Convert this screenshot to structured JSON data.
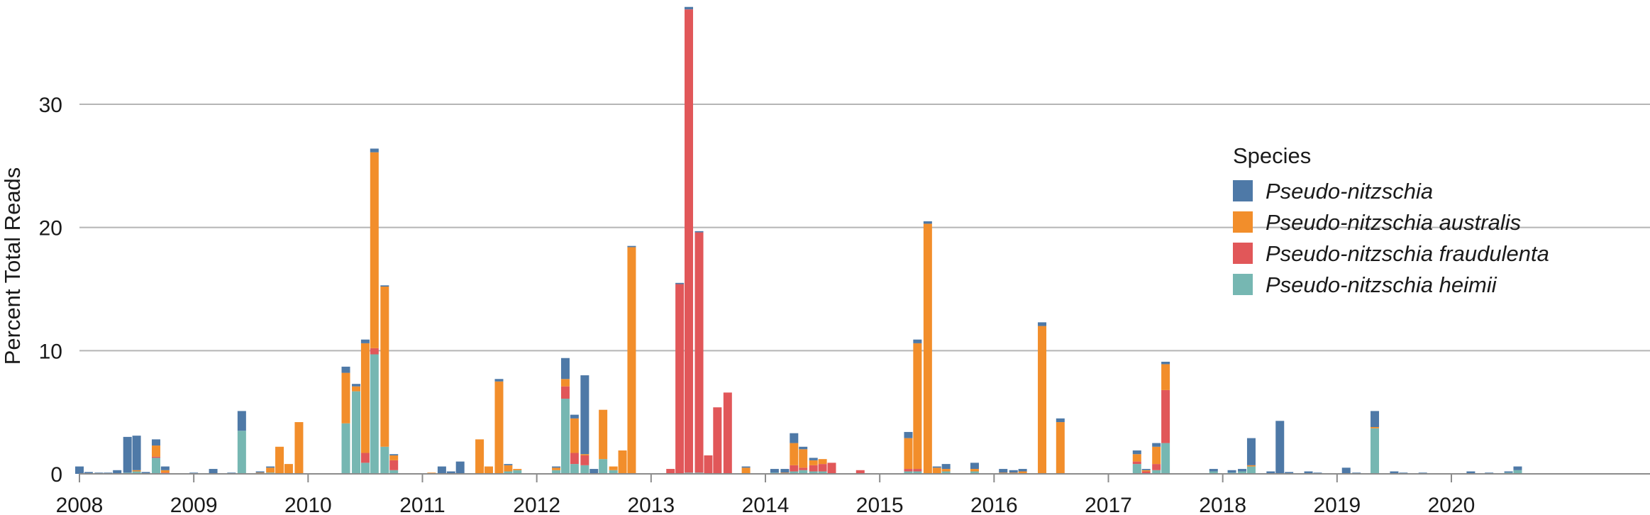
{
  "chart_data": {
    "type": "bar",
    "stacked": true,
    "ylabel": "Percent Total Reads",
    "xlabel": "",
    "ylim": [
      0,
      38
    ],
    "yticks": [
      0,
      10,
      20,
      30
    ],
    "xlim": [
      2008,
      2020.85
    ],
    "xticks": [
      2008,
      2009,
      2010,
      2011,
      2012,
      2013,
      2014,
      2015,
      2016,
      2017,
      2018,
      2019,
      2020
    ],
    "grid": "horizontal",
    "legend": {
      "title": "Species",
      "placement": "right"
    },
    "series_order": [
      "heimii",
      "fraudulenta",
      "australis",
      "pn"
    ],
    "series": [
      {
        "key": "pn",
        "name": "Pseudo-nitzschia",
        "color": "#4e79a7"
      },
      {
        "key": "australis",
        "name": "Pseudo-nitzschia australis",
        "color": "#f28e2b"
      },
      {
        "key": "fraudulenta",
        "name": "Pseudo-nitzschia fraudulenta",
        "color": "#e15759"
      },
      {
        "key": "heimii",
        "name": "Pseudo-nitzschia heimii",
        "color": "#76b7b2"
      }
    ],
    "bars": [
      {
        "x": 2008.0,
        "pn": 0.6
      },
      {
        "x": 2008.08,
        "pn": 0.15
      },
      {
        "x": 2008.17,
        "pn": 0.1
      },
      {
        "x": 2008.25,
        "pn": 0.1
      },
      {
        "x": 2008.33,
        "pn": 0.3
      },
      {
        "x": 2008.42,
        "pn": 2.9,
        "heimii": 0.1
      },
      {
        "x": 2008.5,
        "pn": 2.8,
        "australis": 0.1,
        "heimii": 0.2
      },
      {
        "x": 2008.58,
        "pn": 0.15
      },
      {
        "x": 2008.67,
        "pn": 0.5,
        "australis": 0.9,
        "fraudulenta": 0.1,
        "heimii": 1.3
      },
      {
        "x": 2008.75,
        "pn": 0.3,
        "australis": 0.2,
        "fraudulenta": 0.1
      },
      {
        "x": 2009.0,
        "pn": 0.1
      },
      {
        "x": 2009.17,
        "pn": 0.4
      },
      {
        "x": 2009.33,
        "pn": 0.1
      },
      {
        "x": 2009.42,
        "pn": 1.6,
        "heimii": 3.5
      },
      {
        "x": 2009.58,
        "pn": 0.1,
        "australis": 0.1
      },
      {
        "x": 2009.67,
        "pn": 0.1,
        "australis": 0.4,
        "heimii": 0.1
      },
      {
        "x": 2009.75,
        "australis": 2.2
      },
      {
        "x": 2009.83,
        "australis": 0.8
      },
      {
        "x": 2009.92,
        "australis": 4.2
      },
      {
        "x": 2010.0,
        "pn": 0.05
      },
      {
        "x": 2010.08,
        "pn": 0.05
      },
      {
        "x": 2010.33,
        "pn": 0.5,
        "australis": 4.1,
        "heimii": 4.1
      },
      {
        "x": 2010.42,
        "pn": 0.2,
        "australis": 0.4,
        "heimii": 6.7
      },
      {
        "x": 2010.5,
        "pn": 0.3,
        "australis": 8.9,
        "fraudulenta": 0.8,
        "heimii": 0.9
      },
      {
        "x": 2010.58,
        "pn": 0.3,
        "australis": 15.9,
        "fraudulenta": 0.5,
        "heimii": 9.7
      },
      {
        "x": 2010.67,
        "pn": 0.1,
        "australis": 13.0,
        "heimii": 2.2
      },
      {
        "x": 2010.75,
        "pn": 0.1,
        "australis": 0.4,
        "fraudulenta": 0.8,
        "heimii": 0.3
      },
      {
        "x": 2011.08,
        "australis": 0.1
      },
      {
        "x": 2011.17,
        "pn": 0.6
      },
      {
        "x": 2011.25,
        "pn": 0.2
      },
      {
        "x": 2011.33,
        "pn": 1.0
      },
      {
        "x": 2011.5,
        "australis": 2.8
      },
      {
        "x": 2011.58,
        "australis": 0.6
      },
      {
        "x": 2011.67,
        "pn": 0.2,
        "australis": 7.5
      },
      {
        "x": 2011.75,
        "pn": 0.1,
        "australis": 0.5,
        "heimii": 0.2
      },
      {
        "x": 2011.83,
        "australis": 0.1,
        "heimii": 0.3
      },
      {
        "x": 2012.17,
        "pn": 0.1,
        "australis": 0.2,
        "heimii": 0.3
      },
      {
        "x": 2012.25,
        "pn": 1.7,
        "australis": 0.6,
        "fraudulenta": 1.0,
        "heimii": 6.1
      },
      {
        "x": 2012.33,
        "pn": 0.3,
        "australis": 2.8,
        "fraudulenta": 0.9,
        "heimii": 0.8
      },
      {
        "x": 2012.42,
        "pn": 6.4,
        "australis": 0.1,
        "fraudulenta": 0.8,
        "heimii": 0.7
      },
      {
        "x": 2012.5,
        "pn": 0.4
      },
      {
        "x": 2012.58,
        "australis": 4.0,
        "heimii": 1.2
      },
      {
        "x": 2012.67,
        "australis": 0.3,
        "heimii": 0.3
      },
      {
        "x": 2012.75,
        "australis": 1.9
      },
      {
        "x": 2012.83,
        "pn": 0.1,
        "australis": 18.4
      },
      {
        "x": 2013.17,
        "fraudulenta": 0.4
      },
      {
        "x": 2013.25,
        "pn": 0.1,
        "fraudulenta": 15.4
      },
      {
        "x": 2013.33,
        "pn": 0.2,
        "fraudulenta": 37.6,
        "heimii": 0.1
      },
      {
        "x": 2013.42,
        "pn": 0.1,
        "fraudulenta": 19.5,
        "heimii": 0.1
      },
      {
        "x": 2013.5,
        "fraudulenta": 1.5
      },
      {
        "x": 2013.58,
        "fraudulenta": 5.4
      },
      {
        "x": 2013.67,
        "fraudulenta": 6.6
      },
      {
        "x": 2013.83,
        "pn": 0.1,
        "australis": 0.5
      },
      {
        "x": 2014.08,
        "pn": 0.3,
        "heimii": 0.1
      },
      {
        "x": 2014.17,
        "pn": 0.3,
        "australis": 0.1
      },
      {
        "x": 2014.25,
        "pn": 0.8,
        "australis": 1.8,
        "fraudulenta": 0.5,
        "heimii": 0.2
      },
      {
        "x": 2014.33,
        "pn": 0.2,
        "australis": 1.5,
        "fraudulenta": 0.2,
        "heimii": 0.3
      },
      {
        "x": 2014.42,
        "pn": 0.2,
        "australis": 0.4,
        "fraudulenta": 0.5,
        "heimii": 0.2
      },
      {
        "x": 2014.5,
        "australis": 0.4,
        "fraudulenta": 0.6,
        "heimii": 0.2
      },
      {
        "x": 2014.58,
        "fraudulenta": 0.9
      },
      {
        "x": 2014.67,
        "pn": 0.05
      },
      {
        "x": 2014.83,
        "fraudulenta": 0.3
      },
      {
        "x": 2015.17,
        "pn": 0.05
      },
      {
        "x": 2015.25,
        "pn": 0.5,
        "australis": 2.5,
        "fraudulenta": 0.2,
        "heimii": 0.2
      },
      {
        "x": 2015.33,
        "pn": 0.3,
        "australis": 10.2,
        "fraudulenta": 0.2,
        "heimii": 0.2
      },
      {
        "x": 2015.42,
        "pn": 0.2,
        "australis": 20.3
      },
      {
        "x": 2015.5,
        "pn": 0.1,
        "australis": 0.5
      },
      {
        "x": 2015.58,
        "pn": 0.4,
        "australis": 0.2,
        "heimii": 0.2
      },
      {
        "x": 2015.83,
        "pn": 0.5,
        "australis": 0.2,
        "heimii": 0.2
      },
      {
        "x": 2016.08,
        "pn": 0.3,
        "australis": 0.1
      },
      {
        "x": 2016.17,
        "pn": 0.2,
        "australis": 0.1
      },
      {
        "x": 2016.25,
        "pn": 0.2,
        "australis": 0.2
      },
      {
        "x": 2016.42,
        "pn": 0.3,
        "australis": 12.0
      },
      {
        "x": 2016.58,
        "pn": 0.3,
        "australis": 4.2
      },
      {
        "x": 2016.83,
        "pn": 0.05
      },
      {
        "x": 2016.92,
        "pn": 0.05
      },
      {
        "x": 2017.25,
        "pn": 0.3,
        "australis": 0.6,
        "fraudulenta": 0.2,
        "heimii": 0.8
      },
      {
        "x": 2017.33,
        "pn": 0.1,
        "australis": 0.1,
        "fraudulenta": 0.2
      },
      {
        "x": 2017.42,
        "pn": 0.3,
        "australis": 1.4,
        "fraudulenta": 0.5,
        "heimii": 0.3
      },
      {
        "x": 2017.5,
        "pn": 0.2,
        "australis": 2.1,
        "fraudulenta": 4.3,
        "heimii": 2.5
      },
      {
        "x": 2017.58,
        "pn": 0.05
      },
      {
        "x": 2017.92,
        "pn": 0.2,
        "heimii": 0.2
      },
      {
        "x": 2018.08,
        "pn": 0.2,
        "heimii": 0.1
      },
      {
        "x": 2018.17,
        "pn": 0.2,
        "heimii": 0.2
      },
      {
        "x": 2018.25,
        "pn": 2.2,
        "australis": 0.1,
        "heimii": 0.6
      },
      {
        "x": 2018.42,
        "pn": 0.2
      },
      {
        "x": 2018.5,
        "pn": 4.3
      },
      {
        "x": 2018.58,
        "pn": 0.15
      },
      {
        "x": 2018.75,
        "pn": 0.2
      },
      {
        "x": 2018.83,
        "pn": 0.1
      },
      {
        "x": 2019.08,
        "pn": 0.5
      },
      {
        "x": 2019.17,
        "pn": 0.1
      },
      {
        "x": 2019.33,
        "pn": 1.3,
        "australis": 0.1,
        "heimii": 3.7
      },
      {
        "x": 2019.5,
        "pn": 0.2
      },
      {
        "x": 2019.58,
        "pn": 0.1
      },
      {
        "x": 2019.75,
        "pn": 0.1
      },
      {
        "x": 2020.17,
        "pn": 0.2
      },
      {
        "x": 2020.33,
        "pn": 0.1
      },
      {
        "x": 2020.5,
        "pn": 0.1,
        "heimii": 0.1
      },
      {
        "x": 2020.58,
        "pn": 0.3,
        "heimii": 0.3
      }
    ]
  }
}
